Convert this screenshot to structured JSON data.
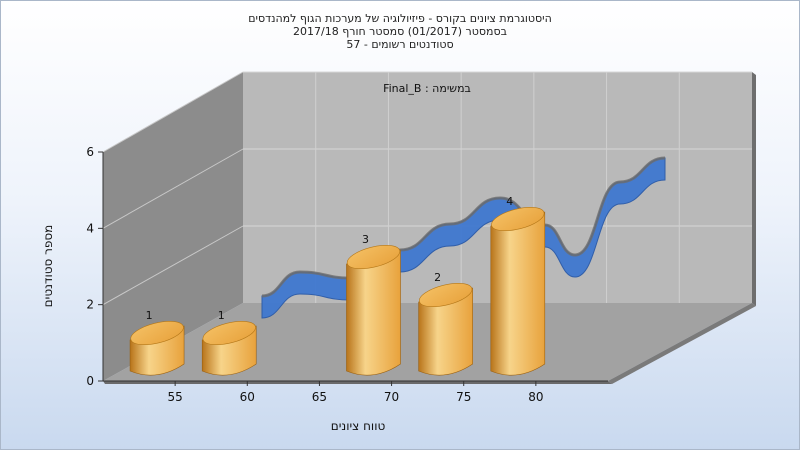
{
  "title_lines": [
    "היסטוגרמת ציונים בקורס - פיזיולוגיה של מערכות הגוף למהנדסים",
    "בסמסטר  (01/2017)  סמסטר חורף 2017/18",
    "סטודנטים רשומים - 57"
  ],
  "chart_data": {
    "type": "bar",
    "annotation": "במשימה : Final_B",
    "xlabel": "טווח ציונים",
    "ylabel": "מספר סטודנטים",
    "x_ticks": [
      "55",
      "60",
      "65",
      "70",
      "75",
      "80"
    ],
    "y_ticks": [
      "0",
      "2",
      "4",
      "6"
    ],
    "ylim": [
      0,
      6
    ],
    "categories": [
      "55",
      "60",
      "70",
      "75",
      "80"
    ],
    "values": [
      1,
      1,
      3,
      2,
      4
    ],
    "bar_labels": [
      "1",
      "1",
      "3",
      "2",
      "4"
    ],
    "series": [
      {
        "type": "bar",
        "values": [
          1,
          1,
          3,
          2,
          4
        ]
      },
      {
        "type": "smoothed-ribbon"
      }
    ],
    "grid": true,
    "three_d": true,
    "colors": {
      "bar": "#e8a23c",
      "bar_dark": "#b8741a",
      "bar_light": "#f7d48a",
      "ribbon": "#3f78d0",
      "ribbon_dark": "#2a5aa8",
      "back_wall": "#b9b9b9",
      "side_wall": "#8c8c8c",
      "floor": "#a2a2a2"
    }
  }
}
